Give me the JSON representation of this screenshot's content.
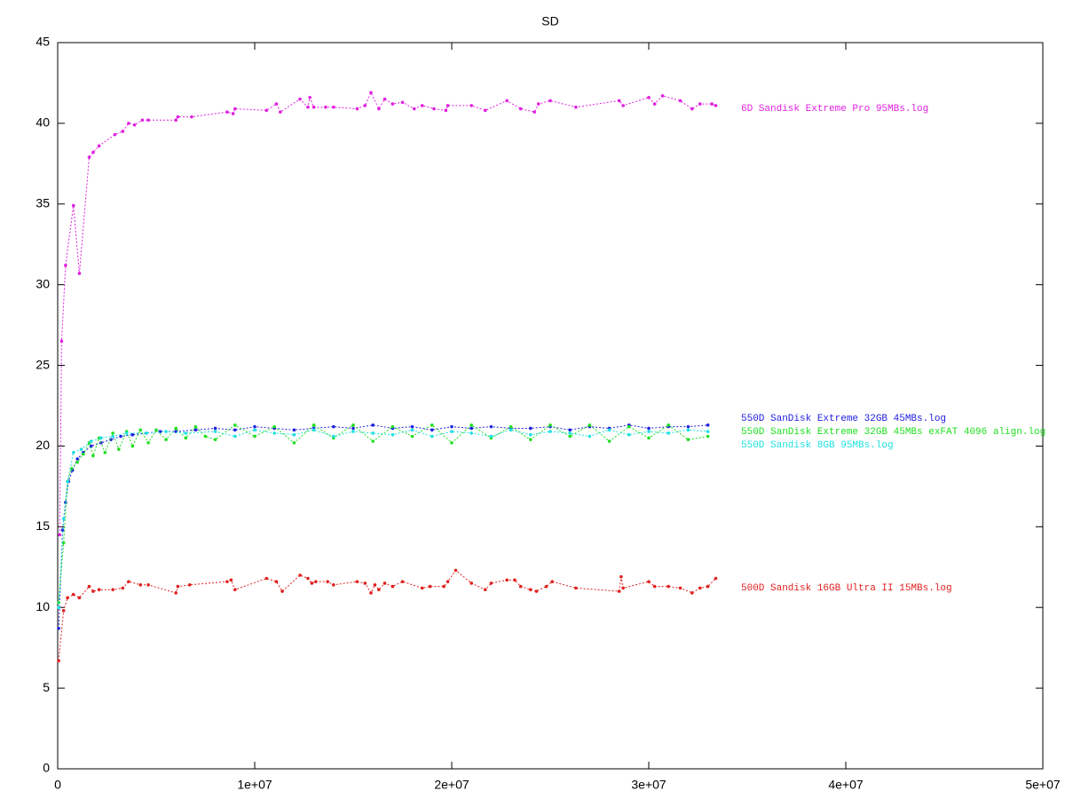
{
  "chart_data": {
    "type": "line",
    "title": "SD",
    "xlim": [
      0,
      50000000
    ],
    "xticks": [
      0,
      {
        "value": 10000000,
        "label": "1e+07"
      },
      {
        "value": 20000000,
        "label": "2e+07"
      },
      {
        "value": 30000000,
        "label": "3e+07"
      },
      {
        "value": 40000000,
        "label": "4e+07"
      },
      {
        "value": 50000000,
        "label": "5e+07"
      }
    ],
    "ylim": [
      0,
      45
    ],
    "yticks": [
      0,
      5,
      10,
      15,
      20,
      25,
      30,
      35,
      40,
      45
    ],
    "grid": false,
    "series": [
      {
        "name": "6D Sandisk Extreme Pro 95MBs.log",
        "color": "#e020e0",
        "x": [
          100000,
          200000,
          400000,
          800000,
          1100000,
          1600000,
          1800000,
          2100000,
          2900000,
          3300000,
          3600000,
          3900000,
          4300000,
          4600000,
          6000000,
          6100000,
          6800000,
          8600000,
          8900000,
          9000000,
          10600000,
          11100000,
          11300000,
          12300000,
          12700000,
          12800000,
          13000000,
          13600000,
          14000000,
          15200000,
          15600000,
          15900000,
          16300000,
          16600000,
          17000000,
          17500000,
          18100000,
          18500000,
          19100000,
          19700000,
          19800000,
          21000000,
          21700000,
          22800000,
          23500000,
          24200000,
          24400000,
          25000000,
          26300000,
          28500000,
          28700000,
          30000000,
          30300000,
          30700000,
          31600000,
          32200000,
          32600000,
          33200000,
          33400000
        ],
        "values": [
          14.5,
          26.5,
          31.2,
          34.9,
          30.7,
          37.9,
          38.2,
          38.6,
          39.3,
          39.5,
          40.0,
          39.9,
          40.2,
          40.2,
          40.2,
          40.4,
          40.4,
          40.7,
          40.6,
          40.9,
          40.8,
          41.2,
          40.7,
          41.5,
          41.0,
          41.6,
          41.0,
          41.0,
          41.0,
          40.9,
          41.1,
          41.9,
          40.9,
          41.5,
          41.2,
          41.3,
          40.9,
          41.1,
          40.9,
          40.8,
          41.1,
          41.1,
          40.8,
          41.4,
          40.9,
          40.7,
          41.2,
          41.4,
          41.0,
          41.4,
          41.1,
          41.6,
          41.2,
          41.7,
          41.4,
          40.9,
          41.2,
          41.2,
          41.1
        ]
      },
      {
        "name": "550D SanDisk Extreme 32GB 45MBs.log",
        "color": "#2020e0",
        "x": [
          50000,
          250000,
          400000,
          550000,
          750000,
          1000000,
          1300000,
          1700000,
          2200000,
          2700000,
          3200000,
          3800000,
          4500000,
          5200000,
          6000000,
          7000000,
          8000000,
          9000000,
          10000000,
          11000000,
          12000000,
          13000000,
          14000000,
          15000000,
          16000000,
          17000000,
          18000000,
          19000000,
          20000000,
          21000000,
          22000000,
          23000000,
          24000000,
          25000000,
          26000000,
          27000000,
          28000000,
          29000000,
          30000000,
          31000000,
          32000000,
          33000000
        ],
        "values": [
          8.7,
          14.8,
          16.5,
          17.8,
          18.5,
          19.2,
          19.6,
          20.0,
          20.2,
          20.4,
          20.6,
          20.7,
          20.8,
          20.9,
          20.9,
          21.0,
          21.1,
          21.0,
          21.2,
          21.1,
          21.0,
          21.1,
          21.2,
          21.1,
          21.3,
          21.1,
          21.2,
          21.0,
          21.2,
          21.1,
          21.2,
          21.1,
          21.1,
          21.2,
          21.0,
          21.2,
          21.1,
          21.3,
          21.1,
          21.2,
          21.2,
          21.3
        ]
      },
      {
        "name": "550D SanDisk Extreme 32GB 45MBs exFAT 4096 align.log",
        "color": "#20e020",
        "x": [
          50000,
          300000,
          500000,
          700000,
          1000000,
          1300000,
          1600000,
          1800000,
          2100000,
          2400000,
          2800000,
          3100000,
          3500000,
          3800000,
          4200000,
          4600000,
          5000000,
          5500000,
          6000000,
          6500000,
          7000000,
          7500000,
          8000000,
          9000000,
          10000000,
          11000000,
          12000000,
          13000000,
          14000000,
          15000000,
          16000000,
          17000000,
          18000000,
          19000000,
          20000000,
          21000000,
          22000000,
          23000000,
          24000000,
          25000000,
          26000000,
          27000000,
          28000000,
          29000000,
          30000000,
          31000000,
          32000000,
          33000000
        ],
        "values": [
          10.3,
          14.0,
          17.8,
          18.6,
          19.0,
          19.5,
          20.2,
          19.4,
          20.5,
          19.6,
          20.8,
          19.8,
          20.9,
          20.0,
          21.0,
          20.2,
          21.0,
          20.4,
          21.1,
          20.5,
          21.2,
          20.6,
          20.4,
          21.3,
          20.6,
          21.2,
          20.2,
          21.3,
          20.5,
          21.3,
          20.3,
          21.2,
          20.6,
          21.3,
          20.2,
          21.3,
          20.5,
          21.2,
          20.4,
          21.3,
          20.6,
          21.3,
          20.3,
          21.2,
          20.5,
          21.3,
          20.4,
          20.6
        ]
      },
      {
        "name": "550D Sandisk 8GB 95MBs.log",
        "color": "#20e0e0",
        "x": [
          50000,
          300000,
          500000,
          800000,
          1200000,
          1700000,
          2200000,
          2800000,
          3500000,
          4500000,
          5500000,
          6500000,
          8000000,
          9000000,
          10000000,
          11000000,
          12000000,
          13000000,
          14000000,
          15000000,
          16000000,
          17000000,
          18000000,
          19000000,
          20000000,
          21000000,
          22000000,
          23000000,
          24000000,
          25000000,
          26000000,
          27000000,
          28000000,
          29000000,
          30000000,
          31000000,
          32000000,
          33000000
        ],
        "values": [
          10.0,
          15.5,
          17.8,
          19.6,
          19.8,
          20.3,
          20.5,
          20.6,
          20.8,
          20.8,
          20.9,
          20.8,
          20.9,
          20.6,
          21.0,
          20.8,
          20.7,
          21.0,
          20.6,
          20.9,
          20.8,
          20.7,
          21.0,
          20.6,
          20.9,
          20.8,
          20.6,
          21.0,
          20.7,
          20.9,
          20.8,
          20.6,
          21.0,
          20.7,
          20.9,
          20.8,
          21.0,
          20.9
        ]
      },
      {
        "name": "500D Sandisk 16GB Ultra II 15MBs.log",
        "color": "#e02020",
        "x": [
          50000,
          300000,
          500000,
          800000,
          1100000,
          1600000,
          1800000,
          2100000,
          2800000,
          3300000,
          3600000,
          4200000,
          4600000,
          6000000,
          6100000,
          6700000,
          8600000,
          8800000,
          9000000,
          10600000,
          11100000,
          11400000,
          12300000,
          12700000,
          12900000,
          13100000,
          13700000,
          14000000,
          15200000,
          15600000,
          15900000,
          16100000,
          16300000,
          16600000,
          17000000,
          17500000,
          18500000,
          18900000,
          19600000,
          19800000,
          20200000,
          21000000,
          21700000,
          22000000,
          22800000,
          23200000,
          23500000,
          24000000,
          24300000,
          24800000,
          25100000,
          26300000,
          28500000,
          28600000,
          28700000,
          30000000,
          30300000,
          31000000,
          31600000,
          32200000,
          32600000,
          33000000,
          33400000
        ],
        "values": [
          6.7,
          9.8,
          10.6,
          10.8,
          10.6,
          11.3,
          11.0,
          11.1,
          11.1,
          11.2,
          11.6,
          11.4,
          11.4,
          10.9,
          11.3,
          11.4,
          11.6,
          11.7,
          11.1,
          11.8,
          11.6,
          11.0,
          12.0,
          11.8,
          11.5,
          11.6,
          11.6,
          11.4,
          11.6,
          11.5,
          10.9,
          11.4,
          11.1,
          11.5,
          11.3,
          11.6,
          11.2,
          11.3,
          11.3,
          11.6,
          12.3,
          11.5,
          11.1,
          11.5,
          11.7,
          11.7,
          11.3,
          11.1,
          11.0,
          11.3,
          11.6,
          11.2,
          11.0,
          11.9,
          11.2,
          11.6,
          11.3,
          11.3,
          11.2,
          10.9,
          11.2,
          11.3,
          11.8
        ]
      }
    ]
  }
}
